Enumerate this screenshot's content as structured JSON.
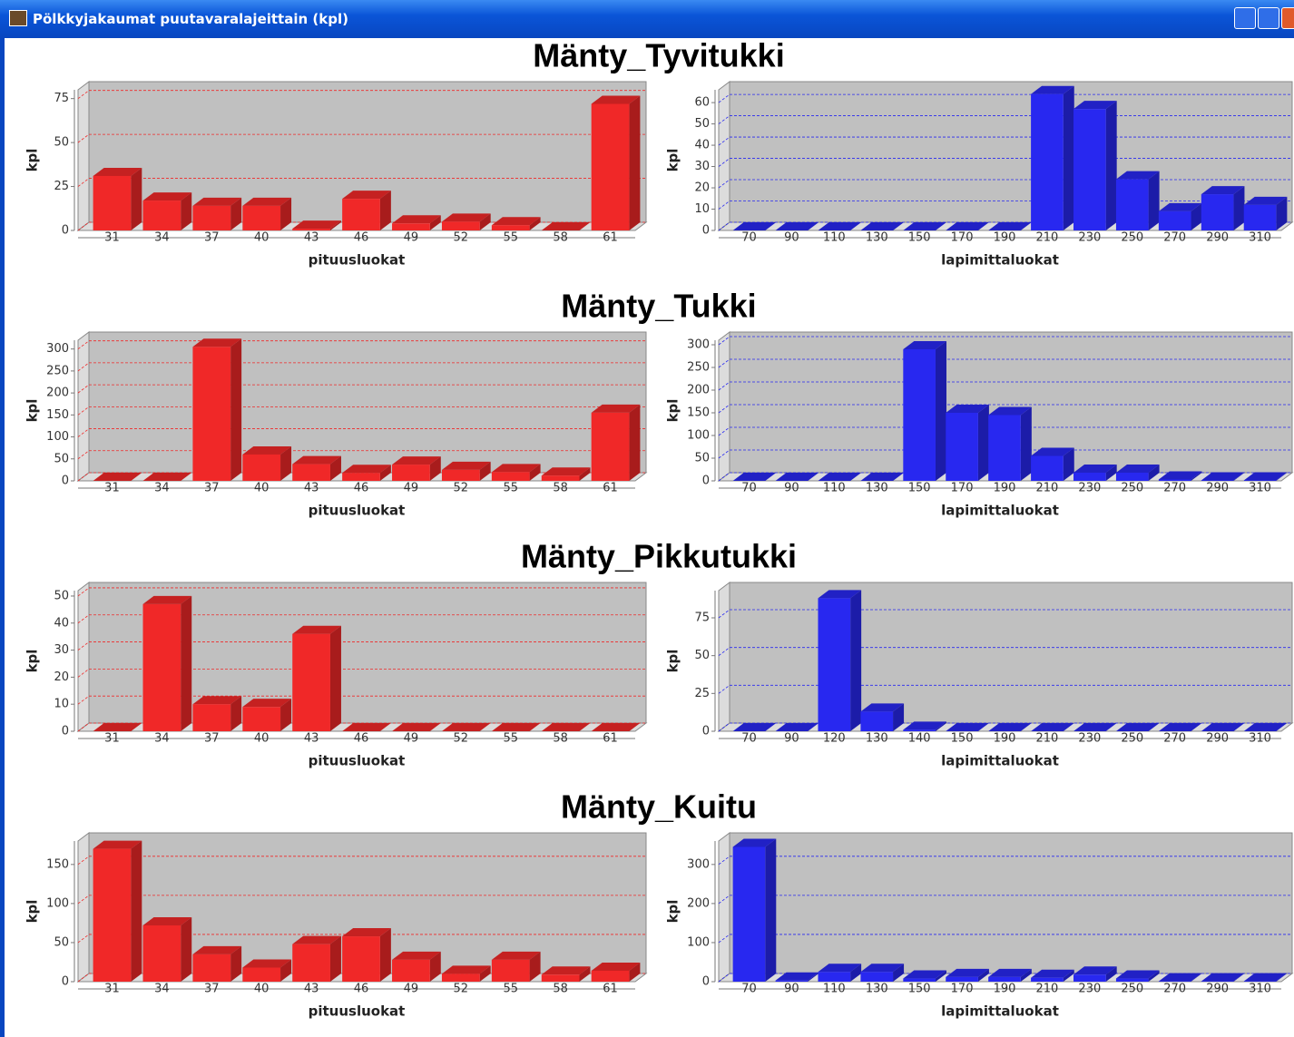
{
  "window": {
    "title": "Pölkkyjakaumat puutavaralajeittain (kpl)"
  },
  "sections": [
    "Mänty_Tyvitukki",
    "Mänty_Tukki",
    "Mänty_Pikkutukki",
    "Mänty_Kuitu"
  ],
  "chart_data": [
    {
      "type": "bar",
      "categories": [
        "31",
        "34",
        "37",
        "40",
        "43",
        "46",
        "49",
        "52",
        "55",
        "58",
        "61"
      ],
      "values": [
        31,
        17,
        14,
        14,
        1,
        18,
        4,
        5,
        3,
        0,
        72
      ],
      "color": "#f02828",
      "ylim": [
        0,
        80
      ],
      "yticks": [
        0,
        25,
        50,
        75
      ],
      "grid": true,
      "xlabel": "pituusluokat",
      "ylabel": "kpl"
    },
    {
      "type": "bar",
      "categories": [
        "70",
        "90",
        "110",
        "130",
        "150",
        "170",
        "190",
        "210",
        "230",
        "250",
        "270",
        "290",
        "310"
      ],
      "values": [
        0,
        0,
        0,
        0,
        0,
        0,
        0,
        64,
        57,
        24,
        9,
        17,
        12
      ],
      "color": "#2828f0",
      "ylim": [
        0,
        66
      ],
      "yticks": [
        0,
        10,
        20,
        30,
        40,
        50,
        60
      ],
      "grid": true,
      "xlabel": "lapimittaluokat",
      "ylabel": "kpl"
    },
    {
      "type": "bar",
      "categories": [
        "31",
        "34",
        "37",
        "40",
        "43",
        "46",
        "49",
        "52",
        "55",
        "58",
        "61"
      ],
      "values": [
        0,
        0,
        305,
        60,
        38,
        18,
        37,
        25,
        20,
        12,
        155
      ],
      "color": "#f02828",
      "ylim": [
        0,
        320
      ],
      "yticks": [
        0,
        50,
        100,
        150,
        200,
        250,
        300
      ],
      "grid": true,
      "xlabel": "pituusluokat",
      "ylabel": "kpl"
    },
    {
      "type": "bar",
      "categories": [
        "70",
        "90",
        "110",
        "130",
        "150",
        "170",
        "190",
        "210",
        "230",
        "250",
        "270",
        "290",
        "310"
      ],
      "values": [
        0,
        0,
        0,
        0,
        290,
        150,
        145,
        55,
        18,
        18,
        3,
        1,
        1
      ],
      "color": "#2828f0",
      "ylim": [
        0,
        310
      ],
      "yticks": [
        0,
        50,
        100,
        150,
        200,
        250,
        300
      ],
      "grid": true,
      "xlabel": "lapimittaluokat",
      "ylabel": "kpl"
    },
    {
      "type": "bar",
      "categories": [
        "31",
        "34",
        "37",
        "40",
        "43",
        "46",
        "49",
        "52",
        "55",
        "58",
        "61"
      ],
      "values": [
        0,
        47,
        10,
        9,
        36,
        0,
        0,
        0,
        0,
        0,
        0
      ],
      "color": "#f02828",
      "ylim": [
        0,
        52
      ],
      "yticks": [
        0,
        10,
        20,
        30,
        40,
        50
      ],
      "grid": true,
      "xlabel": "pituusluokat",
      "ylabel": "kpl"
    },
    {
      "type": "bar",
      "categories": [
        "70",
        "90",
        "120",
        "130",
        "140",
        "150",
        "190",
        "210",
        "230",
        "250",
        "270",
        "290",
        "310"
      ],
      "values": [
        0,
        0,
        88,
        13,
        1,
        0,
        0,
        0,
        0,
        0,
        0,
        0,
        0
      ],
      "color": "#2828f0",
      "ylim": [
        0,
        93
      ],
      "yticks": [
        0,
        25,
        50,
        75
      ],
      "grid": true,
      "xlabel": "lapimittaluokat",
      "ylabel": "kpl"
    },
    {
      "type": "bar",
      "categories": [
        "31",
        "34",
        "37",
        "40",
        "43",
        "46",
        "49",
        "52",
        "55",
        "58",
        "61"
      ],
      "values": [
        170,
        72,
        35,
        18,
        48,
        58,
        28,
        10,
        28,
        9,
        14
      ],
      "color": "#f02828",
      "ylim": [
        0,
        180
      ],
      "yticks": [
        0,
        50,
        100,
        150
      ],
      "grid": true,
      "xlabel": "pituusluokat",
      "ylabel": "kpl"
    },
    {
      "type": "bar",
      "categories": [
        "70",
        "90",
        "110",
        "130",
        "150",
        "170",
        "190",
        "210",
        "230",
        "250",
        "270",
        "290",
        "310"
      ],
      "values": [
        345,
        3,
        25,
        25,
        8,
        12,
        12,
        10,
        18,
        8,
        1,
        1,
        1
      ],
      "color": "#2828f0",
      "ylim": [
        0,
        360
      ],
      "yticks": [
        0,
        100,
        200,
        300
      ],
      "grid": true,
      "xlabel": "lapimittaluokat",
      "ylabel": "kpl"
    }
  ]
}
